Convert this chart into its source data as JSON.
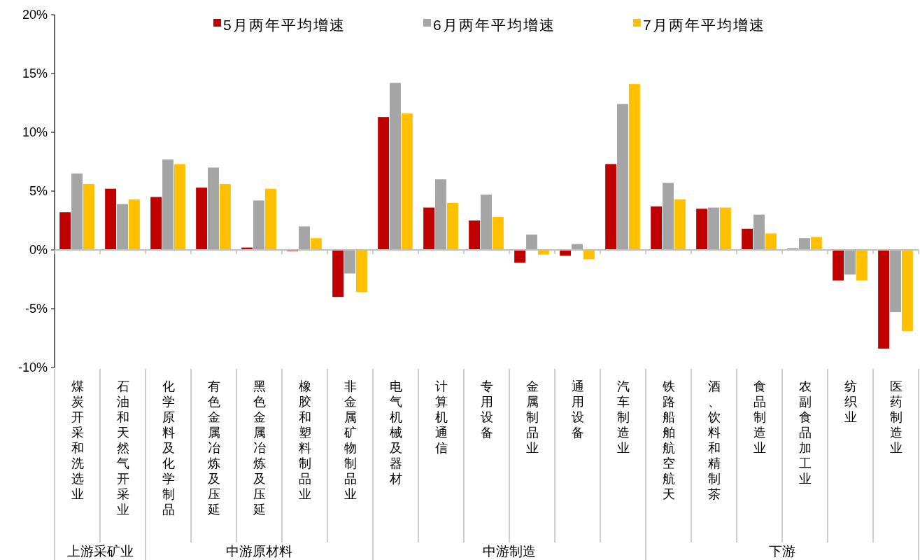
{
  "chart_data": {
    "type": "bar",
    "categories": [
      "煤炭开采和洗选业",
      "石油和天然气开采业",
      "化学原料及化学制品",
      "有色金属冶炼及压延",
      "黑色金属冶炼及压延",
      "橡胶和塑料制品业",
      "非金属矿物制品业",
      "电气机械及器材",
      "计算机通信",
      "专用设备",
      "金属制品业",
      "通用设备",
      "汽车制造业",
      "铁路船舶航空航天",
      "酒、饮料和精制茶",
      "食品制造业",
      "农副食品加工业",
      "纺织业",
      "医药制造业"
    ],
    "series": [
      {
        "name": "5月两年平均增速",
        "color": "#c00000",
        "values": [
          3.2,
          5.2,
          4.5,
          5.3,
          0.2,
          -0.1,
          -4.0,
          11.3,
          3.6,
          2.5,
          -1.1,
          -0.5,
          7.3,
          3.7,
          3.5,
          1.8,
          0.1,
          -2.6,
          -8.4
        ]
      },
      {
        "name": "6月两年平均增速",
        "color": "#a5a5a5",
        "values": [
          6.5,
          3.9,
          7.7,
          7.0,
          4.2,
          2.0,
          -2.0,
          14.2,
          6.0,
          4.7,
          1.3,
          0.5,
          12.4,
          5.7,
          3.6,
          3.0,
          1.0,
          -2.1,
          -5.3
        ]
      },
      {
        "name": "7月两年平均增速",
        "color": "#ffc000",
        "values": [
          5.6,
          4.3,
          7.3,
          5.6,
          5.2,
          1.0,
          -3.6,
          11.6,
          4.0,
          2.8,
          -0.4,
          -0.8,
          14.1,
          4.3,
          3.6,
          1.4,
          1.1,
          -2.6,
          -6.9
        ]
      }
    ],
    "annotations": [
      "上游采矿业",
      "中游原材料",
      "中游制造",
      "下游"
    ],
    "ylim": [
      -10,
      20
    ],
    "yticks": [
      {
        "value": -10,
        "label": "-10%"
      },
      {
        "value": -5,
        "label": "-5%"
      },
      {
        "value": 0,
        "label": "0%"
      },
      {
        "value": 5,
        "label": "5%"
      },
      {
        "value": 10,
        "label": "10%"
      },
      {
        "value": 15,
        "label": "15%"
      },
      {
        "value": 20,
        "label": "20%"
      }
    ],
    "legend": "top"
  }
}
